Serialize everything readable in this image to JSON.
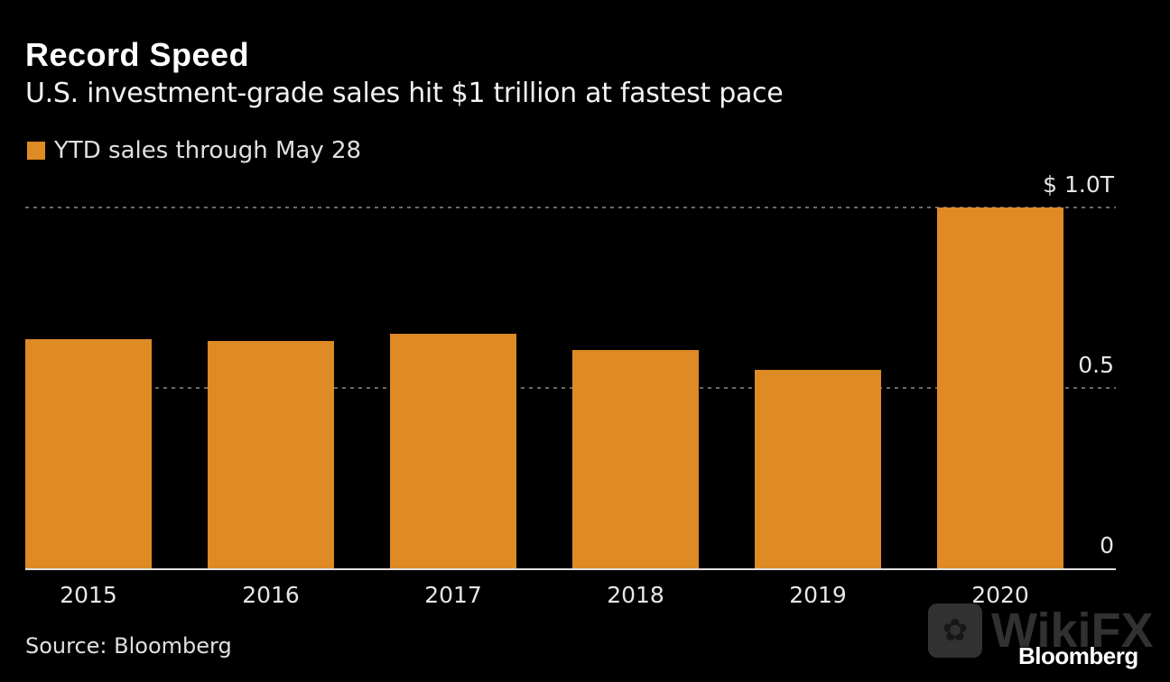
{
  "title": "Record Speed",
  "subtitle": "U.S. investment-grade sales hit $1 trillion at fastest pace",
  "source": "Source: Bloomberg",
  "brand": "Bloomberg",
  "watermark": {
    "text": "WikiFX",
    "icon": "eagle-logo-icon"
  },
  "colors": {
    "bar": "#DE8A25",
    "background": "#000000",
    "text": "#E6E6E6",
    "grid": "#8A8A8A",
    "axis": "#E0E0E0"
  },
  "chart_data": {
    "type": "bar",
    "title": "Record Speed",
    "subtitle": "U.S. investment-grade sales hit $1 trillion at fastest pace",
    "xlabel": "",
    "ylabel": "",
    "categories": [
      "2015",
      "2016",
      "2017",
      "2018",
      "2019",
      "2020"
    ],
    "series": [
      {
        "name": "YTD sales through May 28",
        "values": [
          0.635,
          0.63,
          0.65,
          0.605,
          0.55,
          1.0
        ]
      }
    ],
    "ylim": [
      0,
      1.0
    ],
    "yticks": [
      {
        "value": 0,
        "label": "0"
      },
      {
        "value": 0.5,
        "label": "0.5"
      },
      {
        "value": 1.0,
        "label": "$ 1.0T"
      }
    ],
    "y_axis_side": "right",
    "grid": true,
    "legend": "top-left",
    "units": "trillions of USD"
  }
}
